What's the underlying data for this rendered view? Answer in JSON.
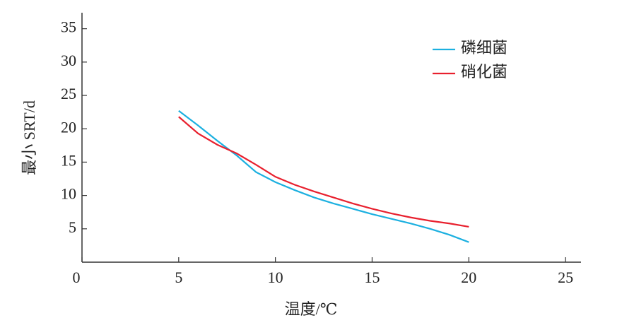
{
  "chart_data": {
    "type": "line",
    "x_label": "温度/℃",
    "y_label": "最小 SRT/d",
    "xlim": [
      0,
      25.8
    ],
    "xticks": [
      0,
      5,
      10,
      15,
      20,
      25
    ],
    "ylim": [
      0,
      37.4
    ],
    "yticks": [
      5,
      10,
      15,
      20,
      25,
      30,
      35
    ],
    "legend": "upper right",
    "x": [
      5,
      6,
      7,
      8,
      9,
      10,
      11,
      12,
      13,
      14,
      15,
      16,
      17,
      18,
      19,
      20
    ],
    "series": [
      {
        "name": "磷细菌",
        "color": "#1cb0e0",
        "values": [
          22.7,
          20.5,
          18.2,
          16.0,
          13.5,
          12.0,
          10.8,
          9.7,
          8.8,
          8.0,
          7.2,
          6.5,
          5.8,
          5.0,
          4.1,
          3.0
        ]
      },
      {
        "name": "硝化菌",
        "color": "#e8202e",
        "values": [
          21.8,
          19.3,
          17.6,
          16.3,
          14.6,
          12.8,
          11.6,
          10.6,
          9.7,
          8.8,
          8.0,
          7.3,
          6.7,
          6.2,
          5.8,
          5.3
        ]
      }
    ]
  }
}
